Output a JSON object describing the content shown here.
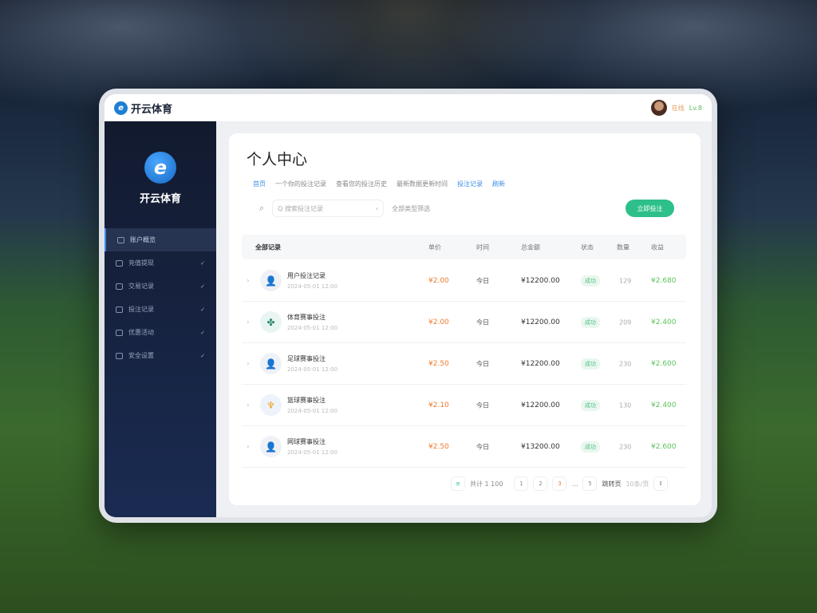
{
  "header": {
    "brand": "开云体育",
    "user_status": "在线",
    "user_level": "Lv.8"
  },
  "sidebar": {
    "brand": "开云体育",
    "items": [
      {
        "label": "账户概览",
        "active": true
      },
      {
        "label": "充值提现",
        "active": false
      },
      {
        "label": "交易记录",
        "active": false
      },
      {
        "label": "投注记录",
        "active": false
      },
      {
        "label": "优惠活动",
        "active": false
      },
      {
        "label": "安全设置",
        "active": false
      }
    ]
  },
  "page": {
    "title": "个人中心",
    "crumbs": [
      "首页",
      "一个你的投注记录",
      "查看您的投注历史",
      "最新数据更新时间",
      "投注记录",
      "刷新"
    ],
    "search_placeholder": "Q 搜索投注记录",
    "filter_text": "全部类型筛选",
    "action_button": "立即投注"
  },
  "table": {
    "headers": [
      "全部记录",
      "单价",
      "时间",
      "总金额",
      "状态",
      "数量",
      "收益"
    ],
    "rows": [
      {
        "name": "用户投注记录",
        "sub": "2024-05-01 12:00",
        "icon": "person",
        "price": "¥2.00",
        "time": "今日",
        "total": "¥12200.00",
        "status": "成功",
        "count": "129",
        "gain": "¥2.680"
      },
      {
        "name": "体育赛事投注",
        "sub": "2024-05-01 12:00",
        "icon": "plant",
        "price": "¥2.00",
        "time": "今日",
        "total": "¥12200.00",
        "status": "成功",
        "count": "209",
        "gain": "¥2.400"
      },
      {
        "name": "足球赛事投注",
        "sub": "2024-05-01 12:00",
        "icon": "person",
        "price": "¥2.50",
        "time": "今日",
        "total": "¥12200.00",
        "status": "成功",
        "count": "230",
        "gain": "¥2.600"
      },
      {
        "name": "篮球赛事投注",
        "sub": "2024-05-01 12:00",
        "icon": "trophy",
        "price": "¥2.10",
        "time": "今日",
        "total": "¥12200.00",
        "status": "成功",
        "count": "130",
        "gain": "¥2.400"
      },
      {
        "name": "网球赛事投注",
        "sub": "2024-05-01 12:00",
        "icon": "person",
        "price": "¥2.50",
        "time": "今日",
        "total": "¥13200.00",
        "status": "成功",
        "count": "230",
        "gain": "¥2.600"
      }
    ]
  },
  "pagination": {
    "summary": "共计 1 100",
    "pages": [
      "1",
      "2",
      "3",
      "…",
      "5"
    ],
    "goto": "跳转页",
    "per_page": "10条/页"
  },
  "colors": {
    "accent": "#2ec08a",
    "price": "#f07a2c",
    "gain": "#5cc45c",
    "sidebar": "#141c33"
  }
}
